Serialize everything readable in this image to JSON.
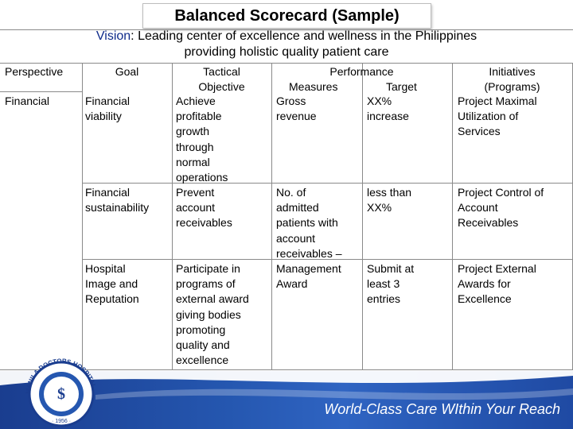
{
  "title": "Balanced Scorecard (Sample)",
  "vision": {
    "label": "Vision",
    "text_line1": ": Leading center of excellence and wellness in the Philippines",
    "text_line2": "providing holistic quality patient care"
  },
  "table": {
    "headers": {
      "perspective": "Perspective",
      "goal": "Goal",
      "objective": "Tactical\nObjective",
      "performance": "Performance",
      "measures": "Measures",
      "target": "Target",
      "initiatives": "Initiatives\n(Programs)"
    },
    "rows": [
      {
        "perspective": "Financial",
        "goal": "Financial\nviability",
        "objective": "Achieve\nprofitable\ngrowth\nthrough\nnormal\noperations",
        "measure": "Gross\nrevenue",
        "target": "XX%\nincrease",
        "initiative": "Project Maximal\nUtilization of\nServices"
      },
      {
        "perspective": "",
        "goal": "Financial\nsustainability",
        "objective": "Prevent\naccount\nreceivables",
        "measure": "No. of\nadmitted\npatients with\naccount\nreceivables –\nManagement\nAward",
        "target": "less than\nXX%",
        "initiative": "Project Control of\nAccount\nReceivables"
      },
      {
        "perspective": "",
        "goal": "Hospital\nImage and\nReputation",
        "objective": "Participate in\nprograms of\nexternal award\ngiving bodies\npromoting\nquality and\nexcellence",
        "measure": "",
        "target": "Submit at\nleast 3\nentries",
        "initiative": "Project External\nAwards for\nExcellence"
      }
    ]
  },
  "footer": {
    "tagline": "World-Class Care WIthin Your Reach"
  },
  "seal": {
    "text_left": "MANILA DOCTORS",
    "text_right": "HOSPITAL",
    "year": "1956"
  },
  "colors": {
    "vision_label": "#0e2a8a",
    "footer_blue": "#2557b0",
    "rule_gray": "#8a8a8a"
  }
}
